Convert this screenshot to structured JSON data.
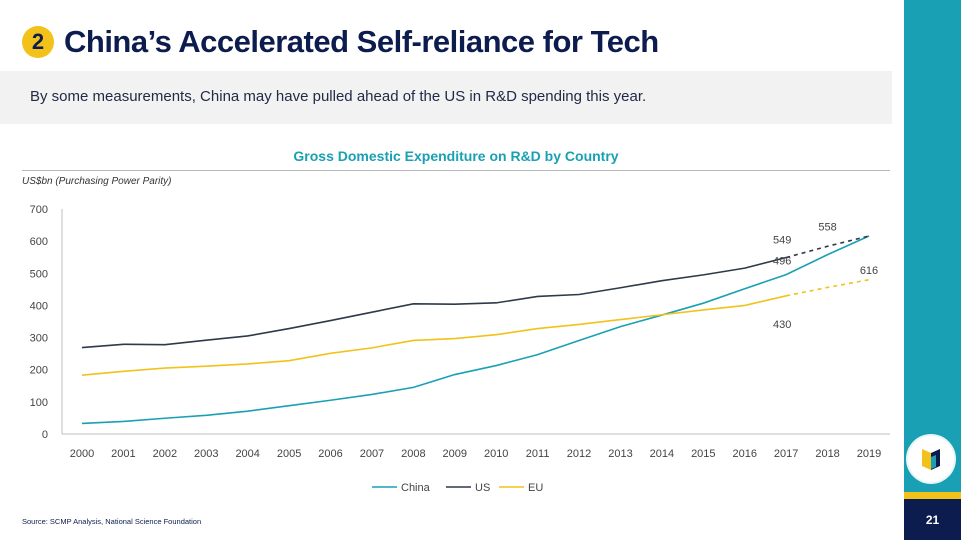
{
  "slide": {
    "number_badge": "2",
    "title": "China’s Accelerated Self-reliance for Tech",
    "subtitle": "By some measurements, China may have pulled ahead of the US in R&D spending this year.",
    "source": "Source: SCMP Analysis, National Science Foundation",
    "page_number": "21"
  },
  "colors": {
    "navy": "#0d1c4f",
    "teal": "#1aa0b4",
    "yellow": "#f2c21b",
    "china": "#1aa0b4",
    "us": "#2d3a4a",
    "eu": "#f2c21b"
  },
  "chart_data": {
    "type": "line",
    "title": "Gross Domestic Expenditure on R&D by Country",
    "ylabel": "US$bn (Purchasing Power Parity)",
    "xlabel": "",
    "ylim": [
      0,
      700
    ],
    "yticks": [
      0,
      100,
      200,
      300,
      400,
      500,
      600,
      700
    ],
    "categories": [
      "2000",
      "2001",
      "2002",
      "2003",
      "2004",
      "2005",
      "2006",
      "2007",
      "2008",
      "2009",
      "2010",
      "2011",
      "2012",
      "2013",
      "2014",
      "2015",
      "2016",
      "2017",
      "2018",
      "2019"
    ],
    "legend_position": "bottom",
    "grid": false,
    "projection_note": "2017-2019 shown dashed for US and EU",
    "series": [
      {
        "name": "China",
        "values": [
          33,
          39,
          49,
          58,
          71,
          88,
          105,
          123,
          145,
          185,
          213,
          247,
          291,
          334,
          370,
          407,
          452,
          496,
          558,
          616
        ]
      },
      {
        "name": "US",
        "values": [
          269,
          279,
          278,
          292,
          305,
          328,
          353,
          379,
          405,
          404,
          408,
          428,
          434,
          455,
          477,
          495,
          516,
          549,
          584,
          616
        ]
      },
      {
        "name": "EU",
        "values": [
          183,
          195,
          205,
          211,
          218,
          228,
          251,
          268,
          291,
          297,
          309,
          328,
          341,
          356,
          371,
          386,
          400,
          430,
          456,
          480
        ]
      }
    ],
    "data_labels": [
      {
        "series": "US",
        "category": "2017",
        "text": "549"
      },
      {
        "series": "China",
        "category": "2017",
        "text": "496"
      },
      {
        "series": "EU",
        "category": "2017",
        "text": "430"
      },
      {
        "series": "China",
        "category": "2018",
        "text": "558"
      },
      {
        "series": "China",
        "category": "2019",
        "text": "616"
      }
    ]
  }
}
